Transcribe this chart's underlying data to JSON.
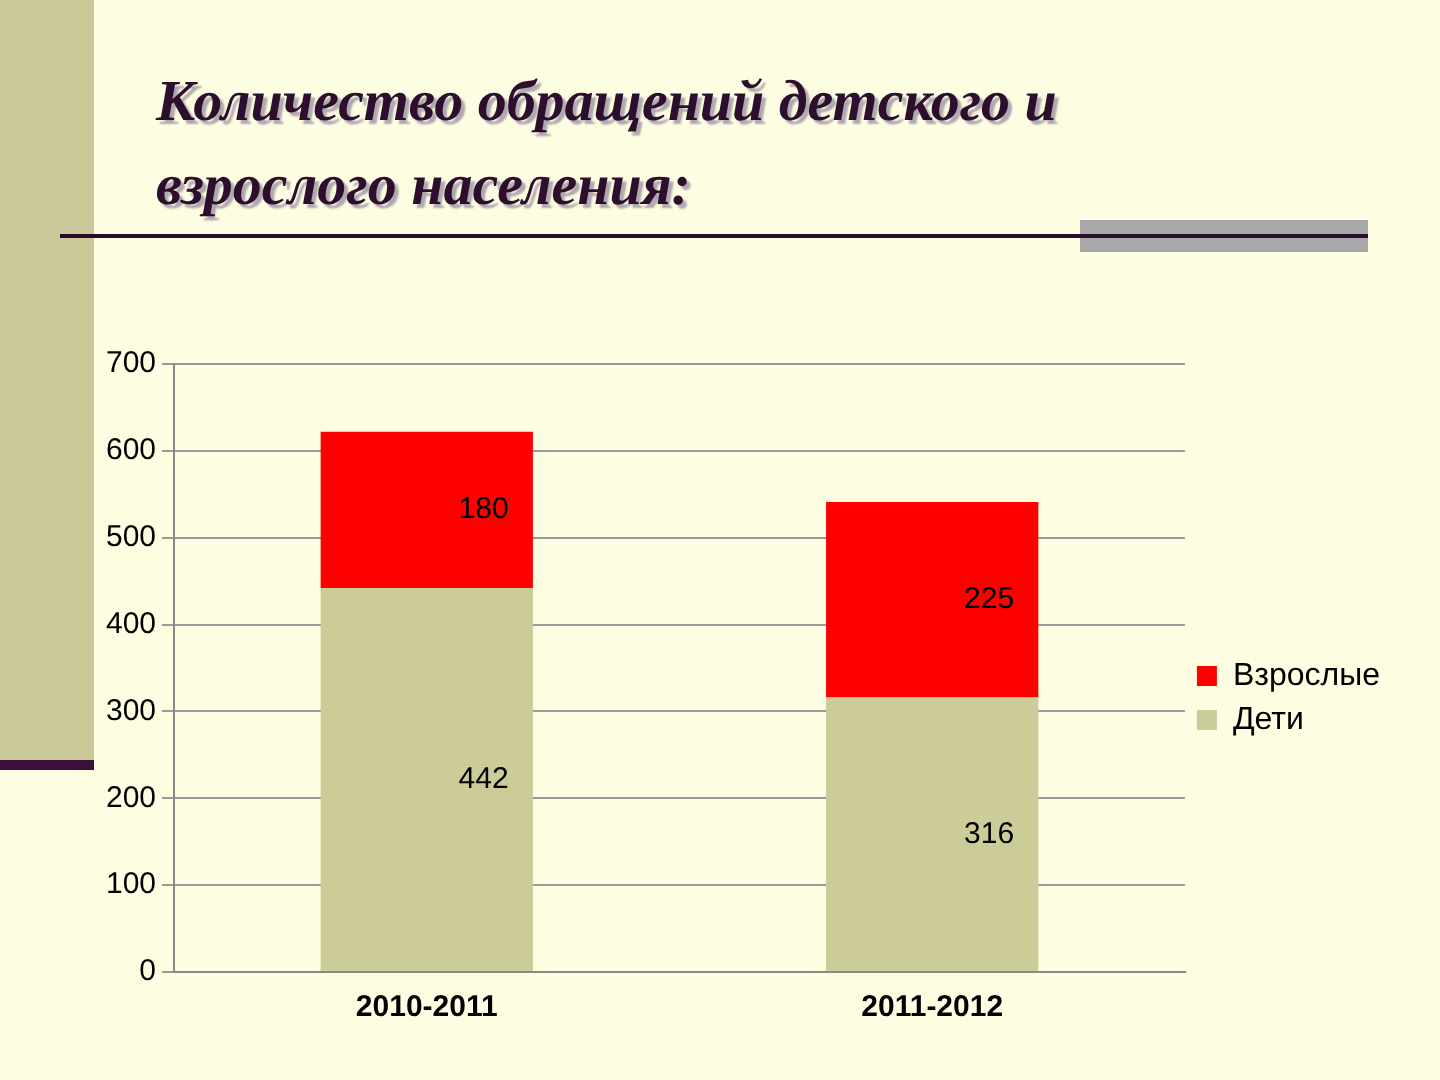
{
  "chart_data": {
    "type": "bar",
    "title": "Количество обращений детского и взрослого населения:",
    "categories": [
      "2010-2011",
      "2011-2012"
    ],
    "series": [
      {
        "name": "Дети",
        "color": "#cccc99",
        "values": [
          442,
          316
        ]
      },
      {
        "name": "Взрослые",
        "color": "#ff0000",
        "values": [
          180,
          225
        ]
      }
    ],
    "stacked": true,
    "ylim": [
      0,
      700
    ],
    "yticks": [
      0,
      100,
      200,
      300,
      400,
      500,
      600,
      700
    ],
    "grid": "y",
    "legend": "right",
    "data_labels": true
  }
}
